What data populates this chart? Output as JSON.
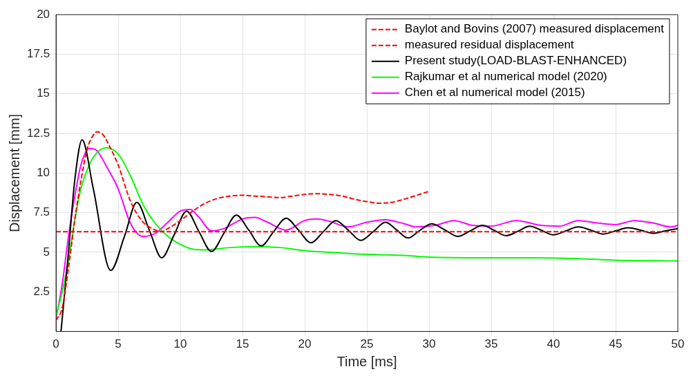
{
  "chart_data": {
    "type": "line",
    "xlabel": "Time [ms]",
    "ylabel": "Displacement [mm]",
    "xlim": [
      0,
      50
    ],
    "ylim": [
      0,
      20
    ],
    "xticks": [
      0,
      5,
      10,
      15,
      20,
      25,
      30,
      35,
      40,
      45,
      50
    ],
    "yticks": [
      2.5,
      5,
      7.5,
      10,
      12.5,
      15,
      17.5,
      20
    ],
    "grid": true,
    "legend": "top right",
    "marker": "none",
    "series": [
      {
        "name": "Baylot and Bovins (2007) measured displacement",
        "color": "#ff0000",
        "line_style": "dashed",
        "x": [
          0,
          0.5,
          1,
          1.5,
          2,
          2.5,
          3,
          3.3,
          3.8,
          4.3,
          5,
          6,
          7,
          8,
          8.5,
          9,
          10,
          11,
          12,
          13,
          14,
          15,
          16,
          17,
          18,
          19,
          20,
          21,
          22,
          23,
          24,
          25,
          26,
          27,
          28,
          29,
          30
        ],
        "values": [
          0.7,
          1.5,
          4,
          7,
          9.5,
          11.5,
          12.4,
          12.6,
          12.4,
          11.7,
          10.5,
          8.2,
          6.9,
          6.4,
          6.3,
          6.5,
          7.0,
          7.6,
          8.1,
          8.4,
          8.55,
          8.6,
          8.55,
          8.5,
          8.45,
          8.55,
          8.65,
          8.7,
          8.65,
          8.55,
          8.35,
          8.2,
          8.1,
          8.15,
          8.35,
          8.6,
          8.85
        ]
      },
      {
        "name": "measured residual displacement",
        "color": "#ff0000",
        "line_style": "dashed",
        "x": [
          0,
          50
        ],
        "values": [
          6.3,
          6.3
        ]
      },
      {
        "name": "Present study(LOAD-BLAST-ENHANCED)",
        "color": "#000000",
        "line_style": "solid",
        "x": [
          0.4,
          1,
          1.5,
          2.1,
          3,
          4.4,
          5.5,
          6.5,
          7.5,
          8.5,
          9.5,
          10.5,
          11.5,
          12.5,
          13.5,
          14.5,
          15.5,
          16.5,
          17.5,
          18.5,
          19.5,
          20.5,
          21.5,
          22.5,
          23.5,
          24.5,
          25.5,
          26.5,
          27.4,
          28.3,
          29.2,
          30.2,
          31.3,
          32.3,
          33.3,
          34.3,
          35.2,
          36.2,
          37.2,
          38.1,
          39,
          40,
          41,
          42,
          43,
          44,
          45,
          46,
          47,
          48,
          49,
          50
        ],
        "values": [
          0,
          5,
          9.5,
          12.1,
          9,
          3.85,
          6,
          8.15,
          6.4,
          4.65,
          6.1,
          7.6,
          6.3,
          5.05,
          6.2,
          7.35,
          6.4,
          5.4,
          6.3,
          7.15,
          6.4,
          5.6,
          6.3,
          7.0,
          6.4,
          5.75,
          6.3,
          6.9,
          6.4,
          5.9,
          6.35,
          6.8,
          6.4,
          6.0,
          6.35,
          6.7,
          6.4,
          6.05,
          6.35,
          6.65,
          6.4,
          6.1,
          6.35,
          6.6,
          6.4,
          6.15,
          6.35,
          6.55,
          6.4,
          6.2,
          6.35,
          6.5
        ]
      },
      {
        "name": "Rajkumar et al numerical model (2020)",
        "color": "#00ff00",
        "line_style": "solid",
        "x": [
          0,
          0.5,
          1,
          1.5,
          2,
          2.5,
          3,
          4,
          5,
          6,
          7,
          8,
          9,
          10,
          11,
          12,
          14,
          16,
          18,
          20,
          22,
          24,
          26,
          28,
          30,
          34,
          38,
          42,
          45,
          50
        ],
        "values": [
          1.0,
          2.5,
          4.5,
          7,
          9,
          10.2,
          11,
          11.6,
          11.2,
          9.8,
          8,
          6.8,
          6.0,
          5.5,
          5.2,
          5.15,
          5.3,
          5.35,
          5.3,
          5.1,
          5.0,
          4.9,
          4.85,
          4.8,
          4.7,
          4.65,
          4.65,
          4.6,
          4.5,
          4.45
        ]
      },
      {
        "name": "Chen et al numerical model (2015)",
        "color": "#ff00ff",
        "line_style": "solid",
        "x": [
          0,
          0.5,
          1,
          1.5,
          2,
          2.7,
          3.3,
          4,
          5,
          6,
          7,
          8,
          9,
          10,
          10.8,
          11.5,
          12.5,
          13.5,
          15,
          16,
          17,
          18.5,
          20,
          21,
          22,
          23.5,
          25,
          26.5,
          28,
          29,
          30.5,
          32,
          33.5,
          35,
          37,
          39,
          40.5,
          42,
          43.5,
          45,
          46.5,
          48,
          49.5,
          50
        ],
        "values": [
          0.8,
          3,
          6,
          8.5,
          10.5,
          11.55,
          11.4,
          10.5,
          9,
          6.8,
          6.0,
          6.2,
          6.9,
          7.6,
          7.7,
          7.2,
          6.35,
          6.5,
          7.1,
          7.2,
          6.9,
          6.4,
          7.0,
          7.1,
          6.95,
          6.6,
          6.9,
          7.05,
          6.8,
          6.6,
          6.7,
          7.0,
          6.7,
          6.65,
          7.0,
          6.7,
          6.65,
          7.0,
          6.85,
          6.75,
          7.0,
          6.85,
          6.6,
          6.7
        ]
      }
    ]
  }
}
